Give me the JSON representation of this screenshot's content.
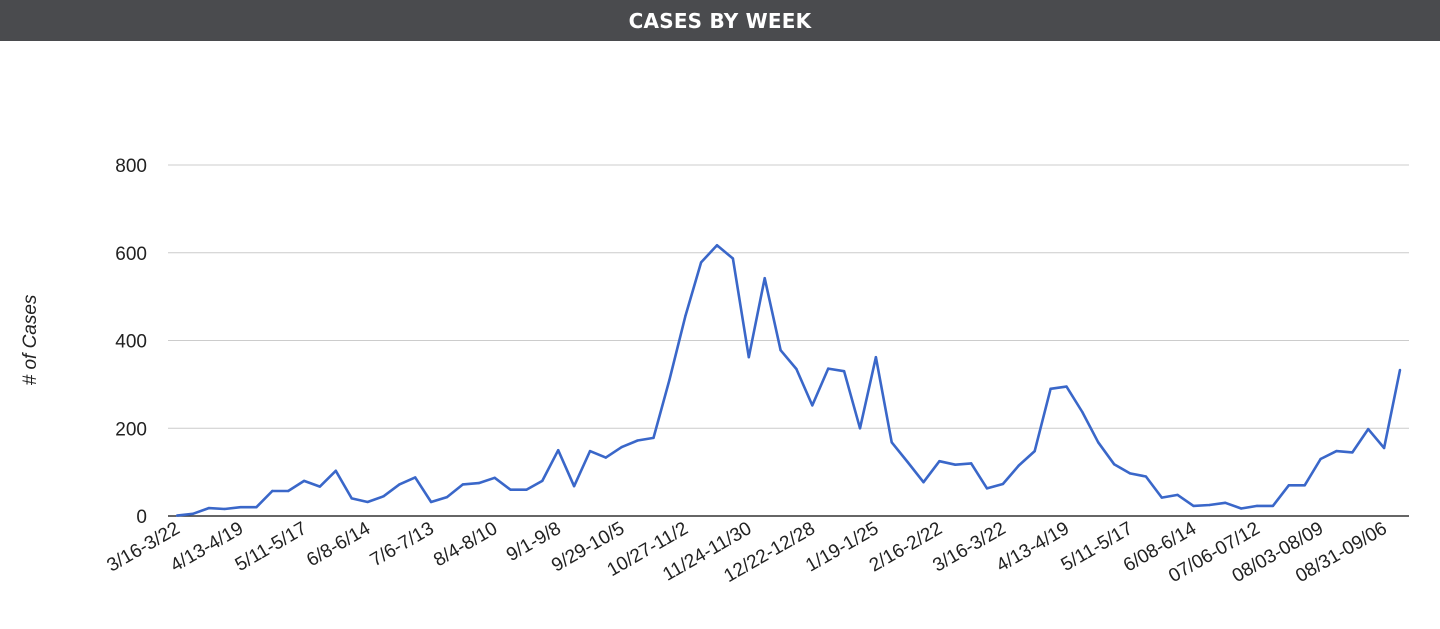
{
  "header": {
    "title": "CASES BY WEEK"
  },
  "colors": {
    "header_bg": "#4a4b4e",
    "line": "#3a67c9",
    "grid": "#cccccc",
    "axis": "#333333",
    "text": "#222222"
  },
  "chart_data": {
    "type": "line",
    "title": "CASES BY WEEK",
    "xlabel": "",
    "ylabel": "# of Cases",
    "ylim": [
      0,
      800
    ],
    "yticks": [
      0,
      200,
      400,
      600,
      800
    ],
    "grid": true,
    "legend": "none",
    "tick_labels": [
      "3/16-3/22",
      "4/13-4/19",
      "5/11-5/17",
      "6/8-6/14",
      "7/6-7/13",
      "8/4-8/10",
      "9/1-9/8",
      "9/29-10/5",
      "10/27-11/2",
      "11/24-11/30",
      "12/22-12/28",
      "1/19-1/25",
      "2/16-2/22",
      "3/16-3/22",
      "4/13-4/19",
      "5/11-5/17",
      "6/08-6/14",
      "07/06-07/12",
      "08/03-08/09",
      "08/31-09/06"
    ],
    "series": [
      {
        "values": [
          1,
          5,
          18,
          16,
          20,
          20,
          57,
          57,
          80,
          67,
          103,
          40,
          32,
          45,
          72,
          88,
          32,
          43,
          72,
          75,
          87,
          60,
          60,
          80,
          150,
          68,
          148,
          133,
          157,
          172,
          178,
          310,
          455,
          578,
          617,
          587,
          362,
          542,
          378,
          335,
          252,
          336,
          330,
          200,
          362,
          168,
          123,
          77,
          125,
          117,
          120,
          63,
          73,
          115,
          148,
          290,
          295,
          237,
          168,
          118,
          97,
          90,
          42,
          48,
          23,
          25,
          30,
          17,
          23,
          23,
          70,
          70,
          130,
          148,
          145,
          198,
          155,
          333
        ]
      }
    ]
  }
}
